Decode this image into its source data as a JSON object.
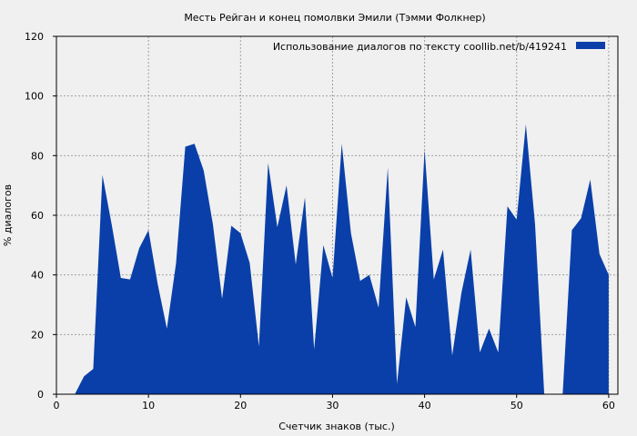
{
  "chart_data": {
    "type": "area",
    "title": "Месть Рейган и конец помолвки Эмили (Тэмми Фолкнер)",
    "xlabel": "Счетчик знаков (тыс.)",
    "ylabel": "% диалогов",
    "xlim": [
      0,
      61
    ],
    "ylim": [
      0,
      120
    ],
    "xticks": [
      0,
      10,
      20,
      30,
      40,
      50,
      60
    ],
    "yticks": [
      0,
      20,
      40,
      60,
      80,
      100,
      120
    ],
    "grid": true,
    "legend_position": "top-right",
    "colors": {
      "background": "#f0f0f0",
      "fill": "#0a3fa9",
      "grid": "#a0a0a0"
    },
    "series": [
      {
        "name": "Использование диалогов по тексту  coollib.net/b/419241",
        "points": [
          [
            2,
            0
          ],
          [
            3,
            6
          ],
          [
            4,
            8.5
          ],
          [
            5,
            73.5
          ],
          [
            6,
            57
          ],
          [
            7,
            39
          ],
          [
            8,
            38.5
          ],
          [
            9,
            49
          ],
          [
            10,
            55
          ],
          [
            11,
            37
          ],
          [
            12,
            22
          ],
          [
            13,
            44
          ],
          [
            14,
            83
          ],
          [
            15,
            84
          ],
          [
            16,
            75
          ],
          [
            17,
            57
          ],
          [
            18,
            32
          ],
          [
            19,
            56.5
          ],
          [
            20,
            54
          ],
          [
            21,
            44
          ],
          [
            22,
            16
          ],
          [
            23,
            77.5
          ],
          [
            24,
            56
          ],
          [
            25,
            70
          ],
          [
            26,
            43.5
          ],
          [
            27,
            66
          ],
          [
            28,
            15
          ],
          [
            29,
            50
          ],
          [
            30,
            39
          ],
          [
            31,
            84
          ],
          [
            32,
            54
          ],
          [
            33,
            38
          ],
          [
            34,
            40
          ],
          [
            35,
            29
          ],
          [
            36,
            76
          ],
          [
            37,
            3.5
          ],
          [
            38,
            32.5
          ],
          [
            39,
            22.5
          ],
          [
            40,
            82
          ],
          [
            41,
            38.5
          ],
          [
            42,
            48.5
          ],
          [
            43,
            13
          ],
          [
            44,
            34
          ],
          [
            45,
            48.5
          ],
          [
            46,
            14
          ],
          [
            47,
            22
          ],
          [
            48,
            14
          ],
          [
            49,
            63
          ],
          [
            50,
            58.5
          ],
          [
            51,
            90.5
          ],
          [
            52,
            57
          ],
          [
            53,
            0
          ],
          [
            55,
            0
          ],
          [
            56,
            55
          ],
          [
            57,
            59
          ],
          [
            58,
            72
          ],
          [
            59,
            47
          ],
          [
            60,
            40
          ],
          [
            60,
            0
          ]
        ]
      }
    ]
  }
}
